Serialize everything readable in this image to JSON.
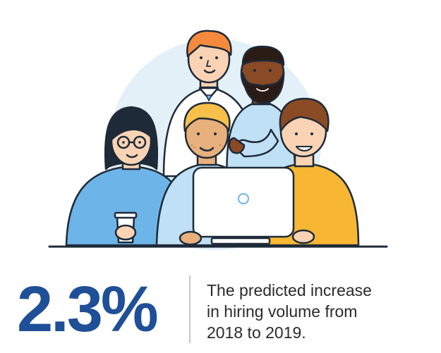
{
  "stat": {
    "value": "2.3%",
    "caption_lines": [
      "The predicted increase",
      "in hiring volume from",
      "2018 to 2019."
    ]
  },
  "colors": {
    "accent": "#1f4f96",
    "backdrop_circle": "#e3f0f8",
    "shirt_blue": "#6db4e8",
    "shirt_light_blue": "#bfe0f5",
    "shirt_yellow": "#f7b733",
    "outline": "#1e2a38",
    "skin_light": "#f9d3b4",
    "skin_tan": "#e8b07c",
    "skin_dark": "#8a4a26",
    "hair_orange": "#f58a3c",
    "hair_brown": "#8a4b24"
  },
  "illustration": {
    "icons": [
      "people-group",
      "computer-monitor",
      "coffee-cup"
    ]
  }
}
